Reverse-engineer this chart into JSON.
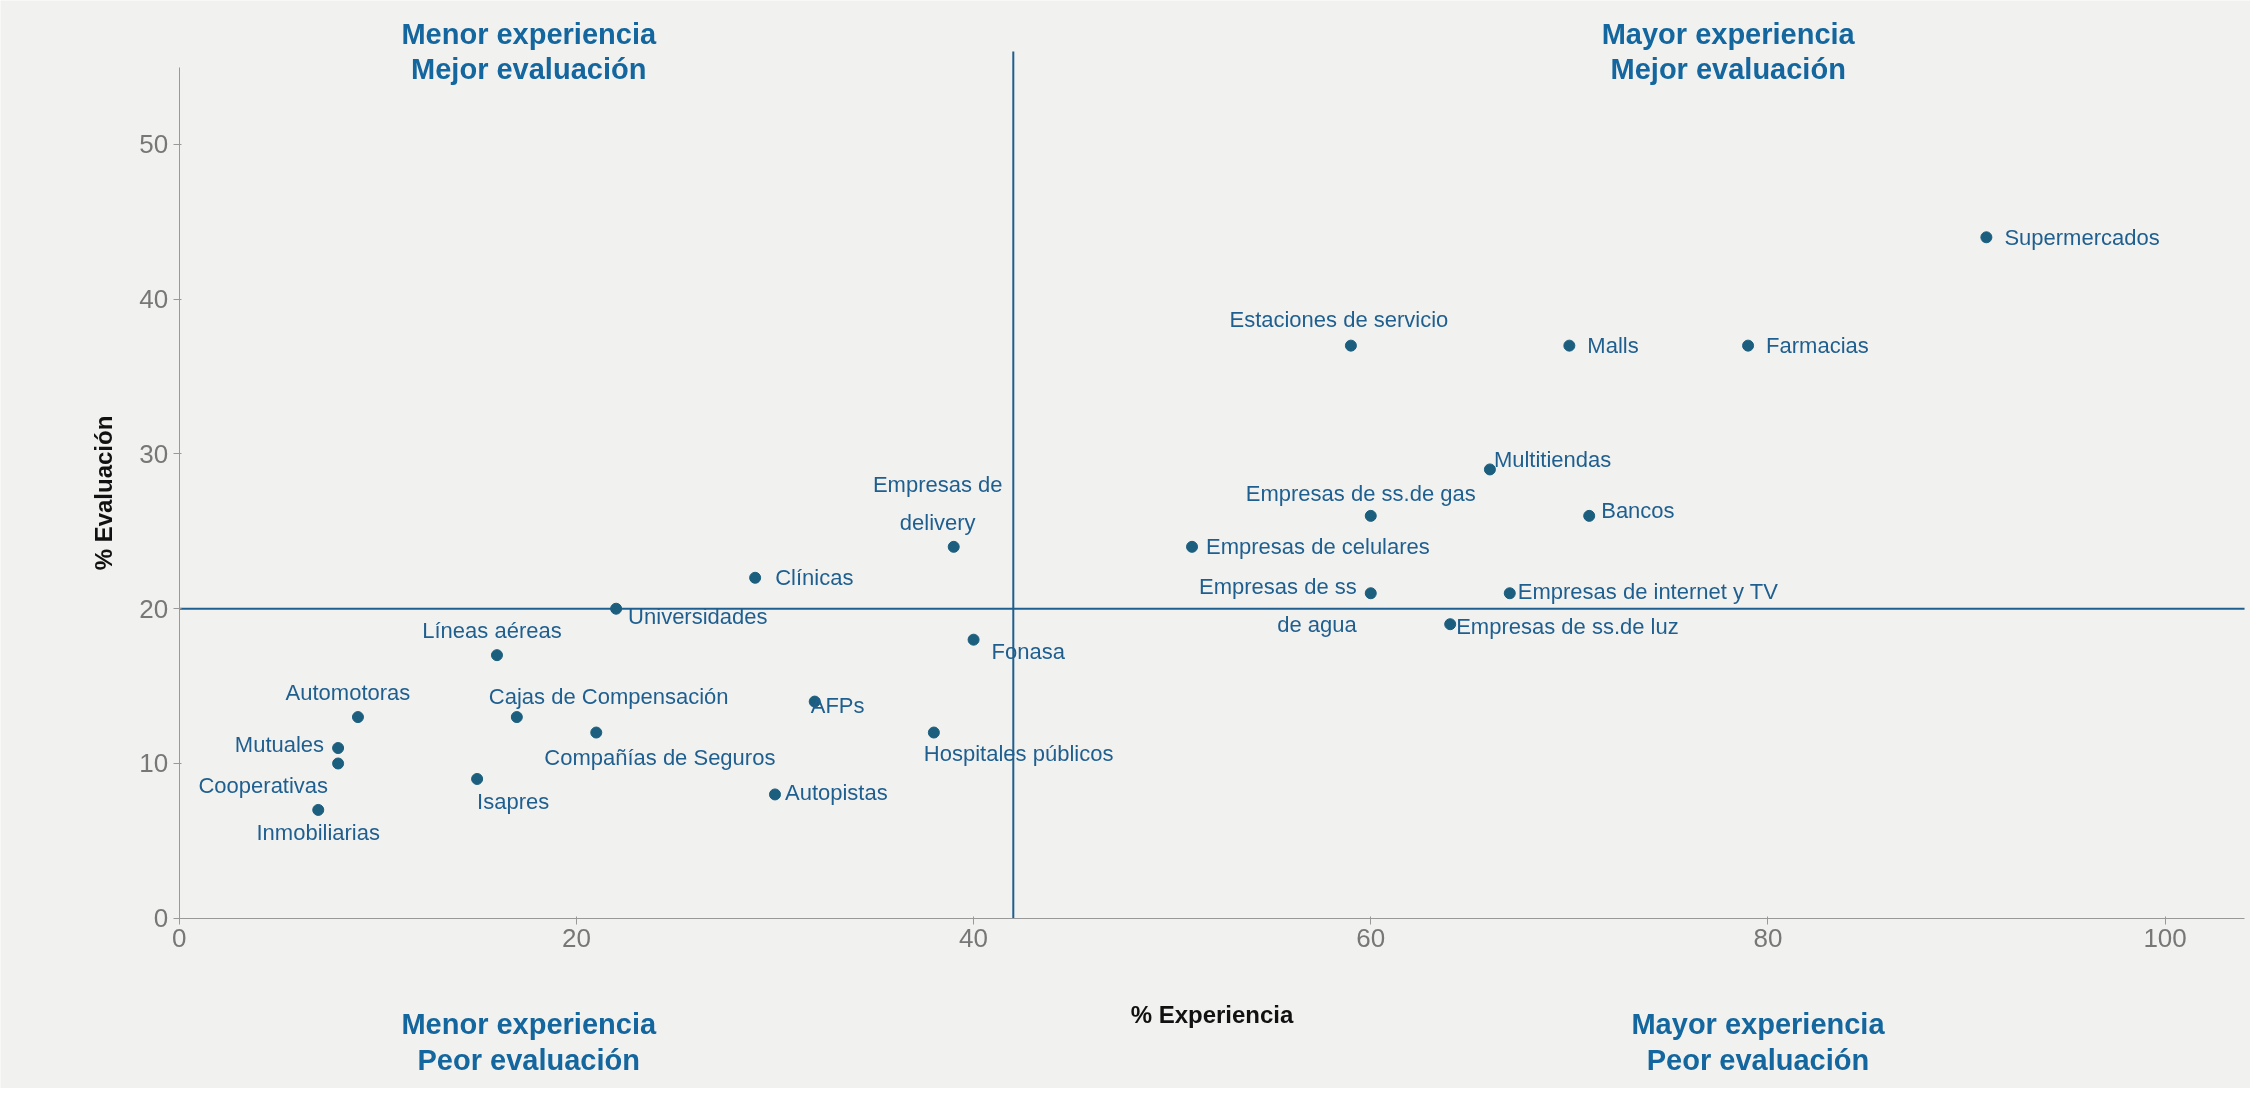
{
  "chart_data": {
    "type": "scatter",
    "xlabel": "% Experiencia",
    "ylabel": "% Evaluación",
    "color": "#1b5e7e",
    "marker": "circle",
    "grid": false,
    "x": [
      91,
      59,
      70,
      79,
      66,
      60,
      71,
      51,
      39,
      29,
      22,
      60,
      67,
      64,
      40,
      16,
      9,
      17,
      32,
      21,
      38,
      8,
      8,
      15,
      30,
      7
    ],
    "values": [
      44,
      37,
      37,
      37,
      29,
      26,
      26,
      24,
      24,
      22,
      20,
      21,
      21,
      19,
      18,
      17,
      13,
      13,
      14,
      12,
      12,
      11,
      10,
      9,
      8,
      7
    ],
    "xlim": [
      0,
      104
    ],
    "ylim": [
      0,
      55
    ],
    "xticks": [
      0,
      20,
      40,
      60,
      80,
      100
    ],
    "yticks": [
      0,
      10,
      20,
      30,
      40,
      50
    ],
    "ref_lines": [
      {
        "axis": "x",
        "value": 42
      },
      {
        "axis": "y",
        "value": 20
      }
    ],
    "annotations": [
      "Menor experiencia\nMejor evaluación",
      "Mayor experiencia\nMejor evaluación",
      "Menor experiencia\nPeor evaluación",
      "Mayor experiencia\nPeor evaluación",
      {
        "text": "Supermercados",
        "x": 91,
        "y": 44
      },
      {
        "text": "Estaciones de servicio",
        "x": 59,
        "y": 37
      },
      {
        "text": "Malls",
        "x": 70,
        "y": 37
      },
      {
        "text": "Farmacias",
        "x": 79,
        "y": 37
      },
      {
        "text": "Multitiendas",
        "x": 66,
        "y": 29
      },
      {
        "text": "Empresas de ss.de gas",
        "x": 60,
        "y": 26
      },
      {
        "text": "Bancos",
        "x": 71,
        "y": 26
      },
      {
        "text": "Empresas de celulares",
        "x": 51,
        "y": 24
      },
      {
        "text": "Empresas de\ndelivery",
        "x": 39,
        "y": 24
      },
      {
        "text": "Clínicas",
        "x": 29,
        "y": 22
      },
      {
        "text": "Universidades",
        "x": 22,
        "y": 20
      },
      {
        "text": "Empresas de ss\nde agua",
        "x": 60,
        "y": 21
      },
      {
        "text": "Empresas de internet y TV",
        "x": 67,
        "y": 21
      },
      {
        "text": "Empresas de ss.de luz",
        "x": 64,
        "y": 19
      },
      {
        "text": "Fonasa",
        "x": 40,
        "y": 18
      },
      {
        "text": "Líneas aéreas",
        "x": 16,
        "y": 17
      },
      {
        "text": "Automotoras",
        "x": 9,
        "y": 13
      },
      {
        "text": "Cajas de Compensación",
        "x": 17,
        "y": 13
      },
      {
        "text": "AFPs",
        "x": 32,
        "y": 14
      },
      {
        "text": "Compañías de Seguros",
        "x": 21,
        "y": 12
      },
      {
        "text": "Hospitales públicos",
        "x": 38,
        "y": 12
      },
      {
        "text": "Mutuales",
        "x": 8,
        "y": 11
      },
      {
        "text": "Cooperativas",
        "x": 8,
        "y": 10
      },
      {
        "text": "Isapres",
        "x": 15,
        "y": 9
      },
      {
        "text": "Autopistas",
        "x": 30,
        "y": 8
      },
      {
        "text": "Inmobiliarias",
        "x": 7,
        "y": 7
      }
    ]
  }
}
